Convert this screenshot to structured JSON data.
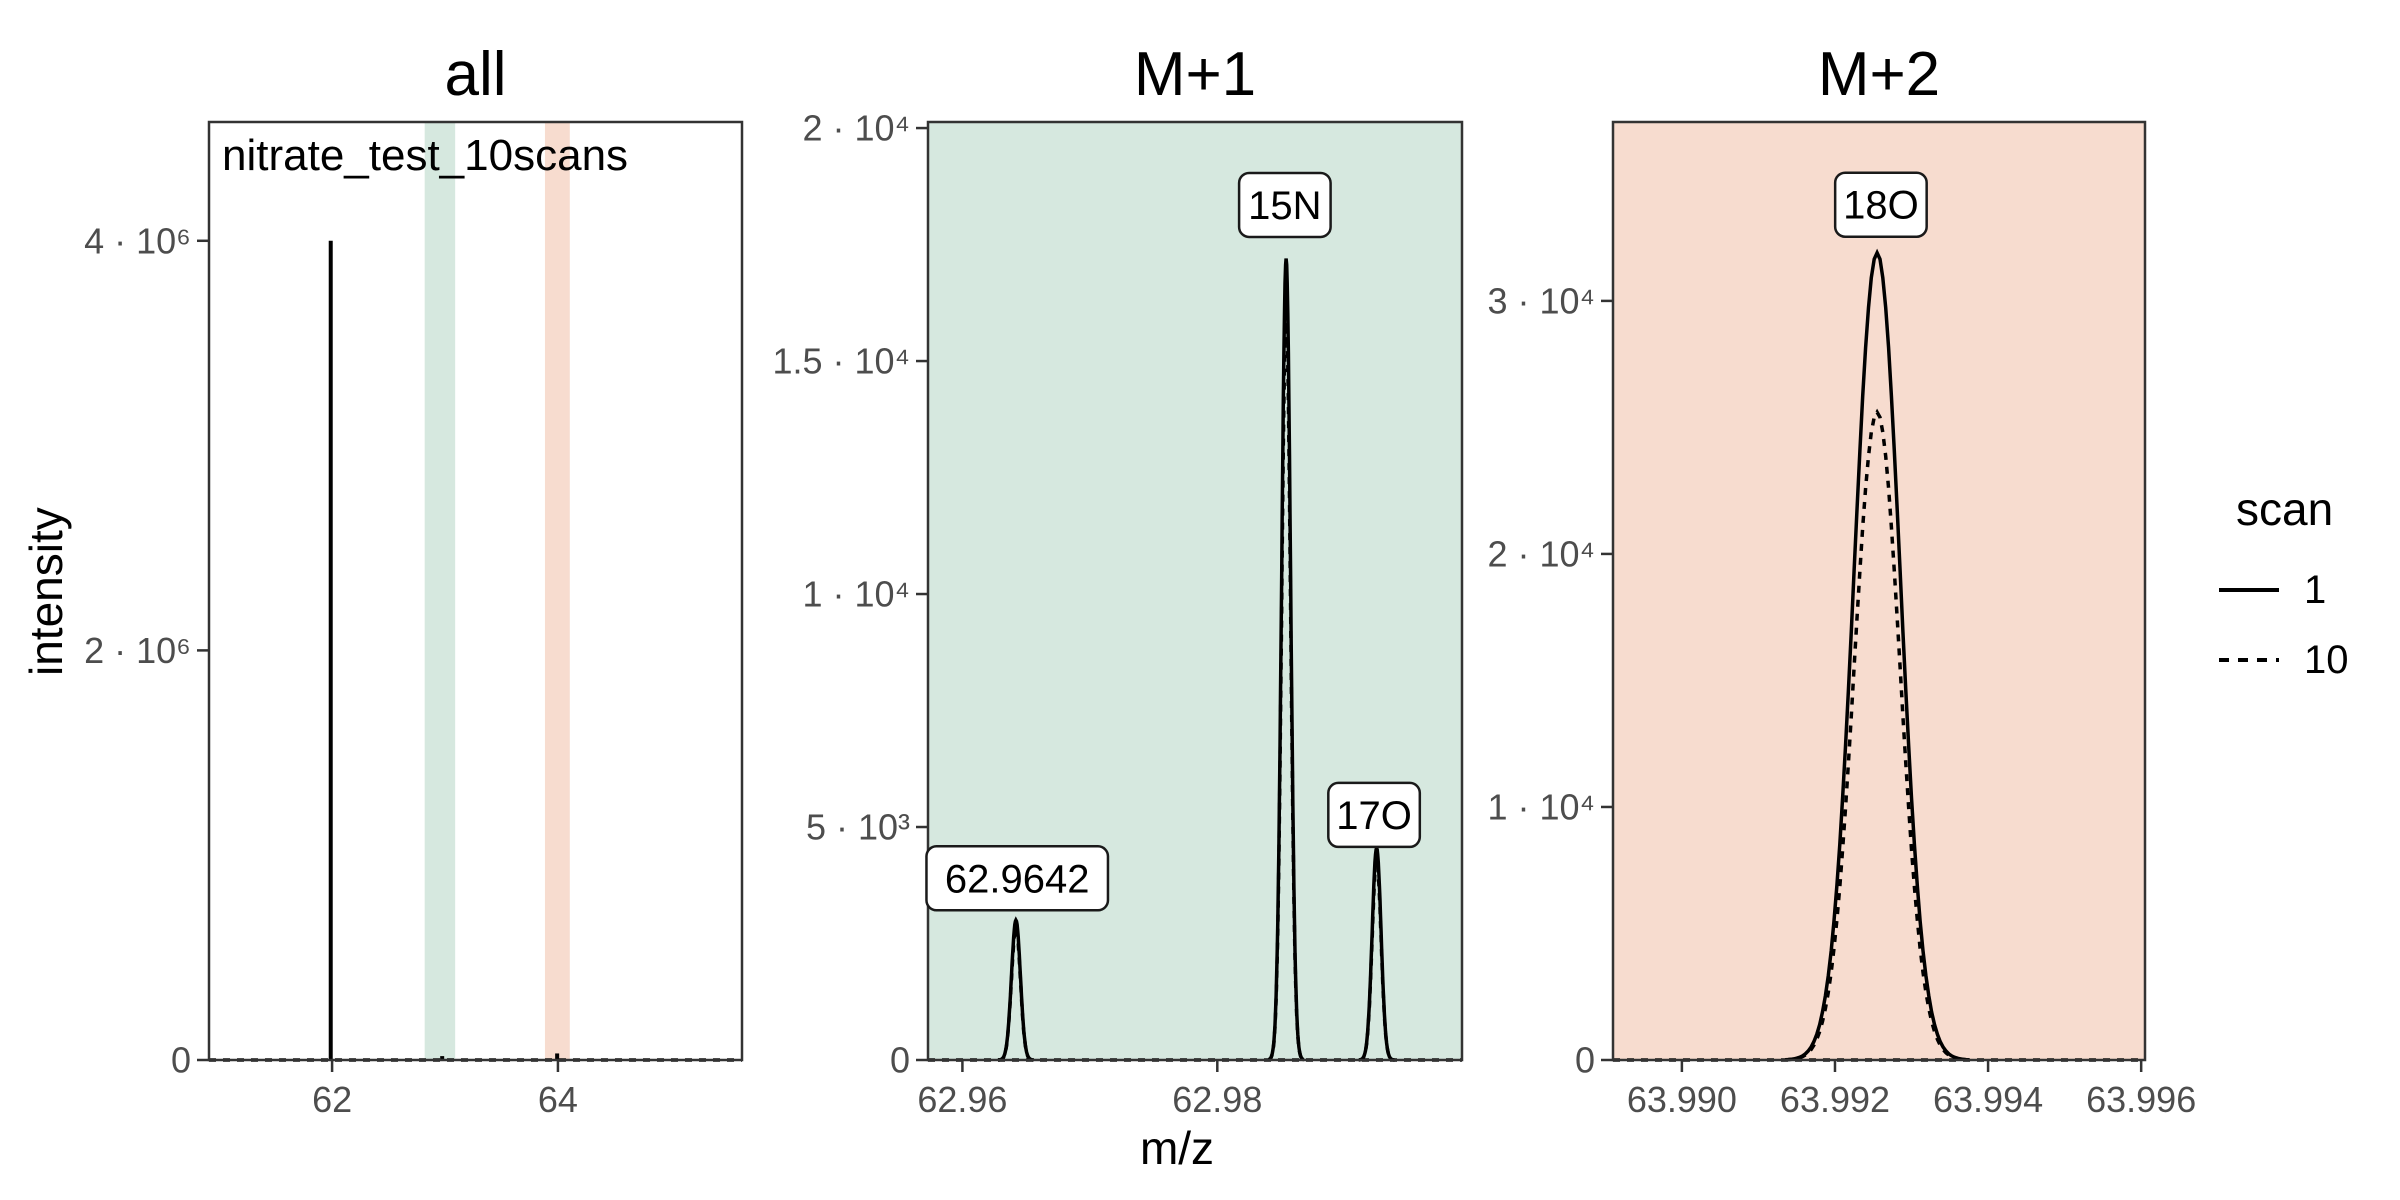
{
  "chart_data": {
    "type": "line",
    "title": "",
    "xlabel": "m/z",
    "ylabel": "intensity",
    "grid": false,
    "legend_position": "right",
    "legend": {
      "title": "scan",
      "entries": [
        {
          "label": "1",
          "linetype": "solid"
        },
        {
          "label": "10",
          "linetype": "dashed"
        }
      ]
    },
    "colors": {
      "m1_fill": "#d6e8df",
      "m2_fill": "#f7dccf",
      "line": "#000000",
      "border": "#333333",
      "tick_text": "#4d4d4d",
      "label_box_fill": "#ffffff"
    },
    "panels": [
      {
        "key": "all",
        "title": "all",
        "annotation": "nitrate_test_10scans",
        "fill": "#ffffff",
        "xlim": [
          60.91,
          65.63
        ],
        "ylim": [
          0,
          4580000
        ],
        "xticks": [
          {
            "v": 62,
            "label": "62"
          },
          {
            "v": 64,
            "label": "64"
          }
        ],
        "yticks": [
          {
            "v": 0,
            "label": "0"
          },
          {
            "v": 2000000,
            "label": "2 · 10⁶"
          },
          {
            "v": 4000000,
            "label": "4 · 10⁶"
          }
        ],
        "bands": [
          {
            "from": 62.82,
            "to": 63.09,
            "color": "#d6e8df",
            "name": "M+1 zoom region"
          },
          {
            "from": 63.885,
            "to": 64.105,
            "color": "#f7dccf",
            "name": "M+2 zoom region"
          }
        ],
        "peaks": [
          {
            "mz": 61.988,
            "scan1": 4000000,
            "stick": true
          },
          {
            "mz": 62.975,
            "scan1": 19000,
            "stick": true
          },
          {
            "mz": 63.993,
            "scan1": 32000,
            "stick": true
          }
        ],
        "labels": []
      },
      {
        "key": "m1",
        "title": "M+1",
        "annotation": "",
        "fill": "#d6e8df",
        "xlim": [
          62.9573,
          62.9992
        ],
        "ylim": [
          0,
          20130
        ],
        "xticks": [
          {
            "v": 62.96,
            "label": "62.96"
          },
          {
            "v": 62.98,
            "label": "62.98"
          }
        ],
        "yticks": [
          {
            "v": 0,
            "label": "0"
          },
          {
            "v": 5000,
            "label": "5 · 10³"
          },
          {
            "v": 10000,
            "label": "1 · 10⁴"
          },
          {
            "v": 15000,
            "label": "1.5 · 10⁴"
          },
          {
            "v": 20000,
            "label": "2 · 10⁴"
          }
        ],
        "bands": [],
        "peaks": [
          {
            "mz": 62.9642,
            "scan1": 3000,
            "scan10": 2850,
            "sigma": 0.00035
          },
          {
            "mz": 62.9854,
            "scan1": 17200,
            "scan10": 16000,
            "sigma": 0.00035
          },
          {
            "mz": 62.9925,
            "scan1": 4550,
            "scan10": 4300,
            "sigma": 0.00035
          }
        ],
        "labels": [
          {
            "text": "62.9642",
            "mz": 62.9643,
            "y": 3900
          },
          {
            "text": "15N",
            "mz": 62.9853,
            "y": 18350
          },
          {
            "text": "17O",
            "mz": 62.9923,
            "y": 5260
          }
        ]
      },
      {
        "key": "m2",
        "title": "M+2",
        "annotation": "",
        "fill": "#f7dccf",
        "xlim": [
          63.9891,
          63.99605
        ],
        "ylim": [
          0,
          37070
        ],
        "xticks": [
          {
            "v": 63.99,
            "label": "63.990"
          },
          {
            "v": 63.992,
            "label": "63.992"
          },
          {
            "v": 63.994,
            "label": "63.994"
          },
          {
            "v": 63.996,
            "label": "63.996"
          }
        ],
        "yticks": [
          {
            "v": 0,
            "label": "0"
          },
          {
            "v": 10000,
            "label": "1 · 10⁴"
          },
          {
            "v": 20000,
            "label": "2 · 10⁴"
          },
          {
            "v": 30000,
            "label": "3 · 10⁴"
          }
        ],
        "bands": [],
        "peaks": [
          {
            "mz": 63.99255,
            "scan1": 31900,
            "scan10": 25600,
            "sigma": 0.0003
          }
        ],
        "labels": [
          {
            "text": "18O",
            "mz": 63.9926,
            "y": 33800
          }
        ]
      }
    ]
  }
}
